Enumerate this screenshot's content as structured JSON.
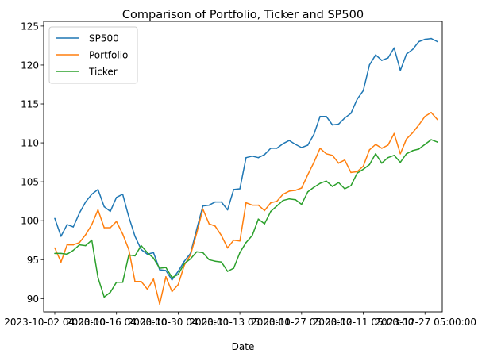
{
  "chart_data": {
    "type": "line",
    "title": "Comparison of Portfolio, Ticker and SP500",
    "xlabel": "Date",
    "ylabel": "",
    "ylim": [
      88.3,
      125.6
    ],
    "yticks": [
      90,
      95,
      100,
      105,
      110,
      115,
      120,
      125
    ],
    "xlim": [
      -1.8,
      62.8
    ],
    "xticks": [
      {
        "x": 0,
        "label": "2023-10-02 04:00:00"
      },
      {
        "x": 10,
        "label": "2023-10-16 04:00:00"
      },
      {
        "x": 20,
        "label": "2023-10-30 04:00:00"
      },
      {
        "x": 30,
        "label": "2023-11-13 05:00:00"
      },
      {
        "x": 40,
        "label": "2023-11-27 05:00:00"
      },
      {
        "x": 50,
        "label": "2023-12-11 05:00:00"
      },
      {
        "x": 60,
        "label": "2023-12-27 05:00:00"
      }
    ],
    "legend": "upper-left",
    "grid": false,
    "series": [
      {
        "name": "SP500",
        "color": "#1f77b4",
        "values": [
          100.3,
          98.0,
          99.5,
          99.2,
          101.0,
          102.4,
          103.4,
          104.0,
          101.8,
          101.2,
          103.0,
          103.4,
          100.5,
          98.0,
          96.3,
          95.7,
          95.9,
          93.7,
          93.6,
          92.4,
          93.5,
          94.8,
          95.8,
          98.9,
          101.9,
          102.0,
          102.4,
          102.4,
          101.4,
          104.0,
          104.1,
          108.1,
          108.3,
          108.1,
          108.5,
          109.3,
          109.3,
          109.9,
          110.3,
          109.8,
          109.4,
          109.7,
          111.1,
          113.4,
          113.4,
          112.3,
          112.4,
          113.2,
          113.8,
          115.6,
          116.7,
          120.0,
          121.3,
          120.6,
          120.9,
          122.2,
          119.3,
          121.4,
          122.0,
          123.0,
          123.3,
          123.4,
          123.0
        ]
      },
      {
        "name": "Portfolio",
        "color": "#ff7f0e",
        "values": [
          96.5,
          94.7,
          96.9,
          96.9,
          97.2,
          98.2,
          99.5,
          101.4,
          99.1,
          99.1,
          99.9,
          98.3,
          96.3,
          92.2,
          92.2,
          91.2,
          92.5,
          89.3,
          92.8,
          90.9,
          91.8,
          94.3,
          95.6,
          98.4,
          101.5,
          99.6,
          99.3,
          98.1,
          96.5,
          97.5,
          97.4,
          102.3,
          102.0,
          102.0,
          101.3,
          102.3,
          102.5,
          103.4,
          103.8,
          103.9,
          104.2,
          105.9,
          107.5,
          109.3,
          108.6,
          108.4,
          107.4,
          107.8,
          106.2,
          106.3,
          107.0,
          109.1,
          109.8,
          109.3,
          109.7,
          111.2,
          108.6,
          110.5,
          111.3,
          112.3,
          113.4,
          113.9,
          113.0
        ]
      },
      {
        "name": "Ticker",
        "color": "#2ca02c",
        "values": [
          95.8,
          95.8,
          95.7,
          96.2,
          96.9,
          96.8,
          97.5,
          92.7,
          90.2,
          90.8,
          92.1,
          92.1,
          95.6,
          95.5,
          96.8,
          95.9,
          95.2,
          93.9,
          94.0,
          92.7,
          93.1,
          94.5,
          95.1,
          96.0,
          95.9,
          95.0,
          94.8,
          94.7,
          93.5,
          93.9,
          95.9,
          97.2,
          98.1,
          100.2,
          99.6,
          101.2,
          101.9,
          102.6,
          102.8,
          102.7,
          102.1,
          103.7,
          104.3,
          104.8,
          105.1,
          104.4,
          104.9,
          104.1,
          104.5,
          106.1,
          106.6,
          107.2,
          108.6,
          107.4,
          108.1,
          108.4,
          107.5,
          108.6,
          109.0,
          109.2,
          109.8,
          110.4,
          110.1
        ]
      }
    ]
  }
}
